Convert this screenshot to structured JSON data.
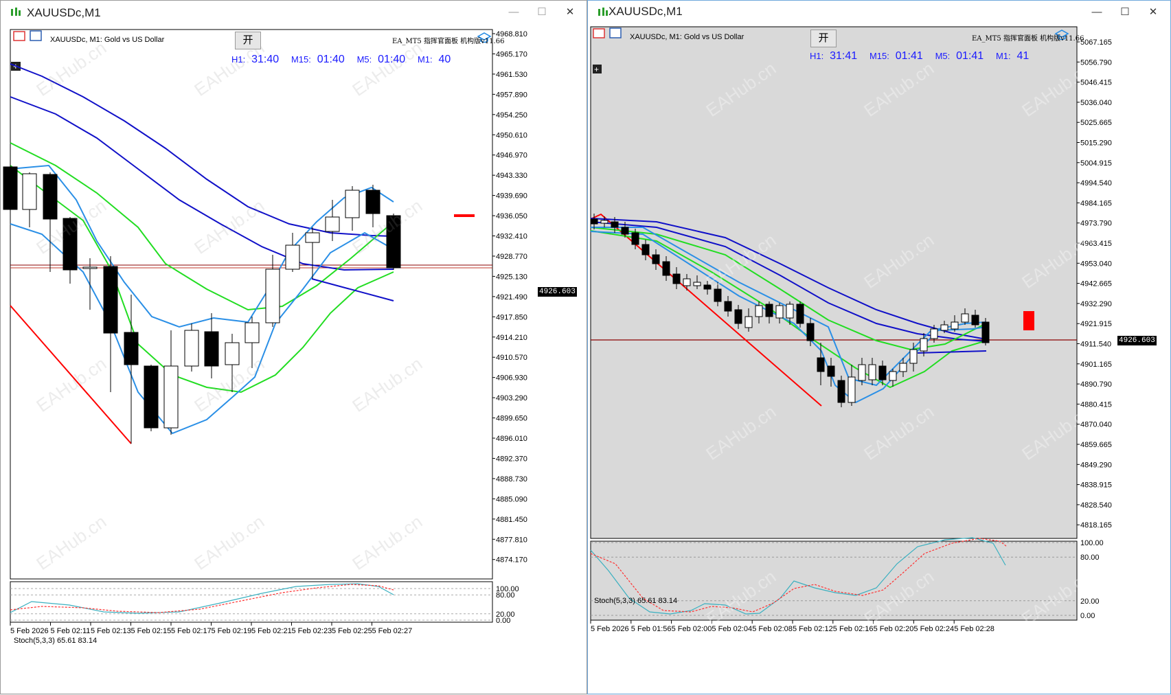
{
  "left_window": {
    "title": "XAUUSDc,M1",
    "chart_header": "XAUUSDc, M1:  Gold vs US Dollar",
    "ea_label": "EA_MT5  指挥官面板  机构版v11.66",
    "open_button": "开",
    "timers": [
      {
        "label": "H1:",
        "value": "31:40"
      },
      {
        "label": "M15:",
        "value": "01:40"
      },
      {
        "label": "M5:",
        "value": "01:40"
      },
      {
        "label": "M1:",
        "value": "40"
      }
    ],
    "current_price": "4926.603",
    "price_axis": [
      "4968.810",
      "4965.170",
      "4961.530",
      "4957.890",
      "4954.250",
      "4950.610",
      "4946.970",
      "4943.330",
      "4939.690",
      "4936.050",
      "4932.410",
      "4928.770",
      "4925.130",
      "4921.490",
      "4917.850",
      "4914.210",
      "4910.570",
      "4906.930",
      "4903.290",
      "4899.650",
      "4896.010",
      "4892.370",
      "4888.730",
      "4885.090",
      "4881.450",
      "4877.810",
      "4874.170"
    ],
    "stoch_label": "Stoch(5,3,3) 65.61 83.14",
    "stoch_axis": [
      "100.00",
      "80.00",
      "20.00",
      "0.00"
    ],
    "time_axis": [
      "5 Feb 2026",
      "5 Feb 02:11",
      "5 Feb 02:13",
      "5 Feb 02:15",
      "5 Feb 02:17",
      "5 Feb 02:19",
      "5 Feb 02:21",
      "5 Feb 02:23",
      "5 Feb 02:25",
      "5 Feb 02:27"
    ]
  },
  "right_window": {
    "title": "XAUUSDc,M1",
    "chart_header": "XAUUSDc, M1:  Gold vs US Dollar",
    "ea_label": "EA_MT5  指挥官面板  机构版v11.66",
    "open_button": "开",
    "timers": [
      {
        "label": "H1:",
        "value": "31:41"
      },
      {
        "label": "M15:",
        "value": "01:41"
      },
      {
        "label": "M5:",
        "value": "01:41"
      },
      {
        "label": "M1:",
        "value": "41"
      }
    ],
    "current_price": "4926.603",
    "price_axis": [
      "5067.165",
      "5056.790",
      "5046.415",
      "5036.040",
      "5025.665",
      "5015.290",
      "5004.915",
      "4994.540",
      "4984.165",
      "4973.790",
      "4963.415",
      "4953.040",
      "4942.665",
      "4932.290",
      "4921.915",
      "4911.540",
      "4901.165",
      "4890.790",
      "4880.415",
      "4870.040",
      "4859.665",
      "4849.290",
      "4838.915",
      "4828.540",
      "4818.165"
    ],
    "stoch_label": "Stoch(5,3,3) 65.61 83.14",
    "stoch_axis": [
      "100.00",
      "80.00",
      "20.00",
      "0.00"
    ],
    "time_axis": [
      "5 Feb 2026",
      "5 Feb 01:56",
      "5 Feb 02:00",
      "5 Feb 02:04",
      "5 Feb 02:08",
      "5 Feb 02:12",
      "5 Feb 02:16",
      "5 Feb 02:20",
      "5 Feb 02:24",
      "5 Feb 02:28"
    ]
  },
  "watermark": "EAHub.cn",
  "colors": {
    "bg_left": "#ffffff",
    "bg_right": "#d9d9d9",
    "ma_blue": "#1010c8",
    "ma_lightblue": "#2a8fe6",
    "ma_green": "#22dd22",
    "trend_red": "#ff0000",
    "stoch_main": "#3ab0c0",
    "stoch_signal": "#ff3030",
    "timer_blue": "#1a1aff"
  }
}
